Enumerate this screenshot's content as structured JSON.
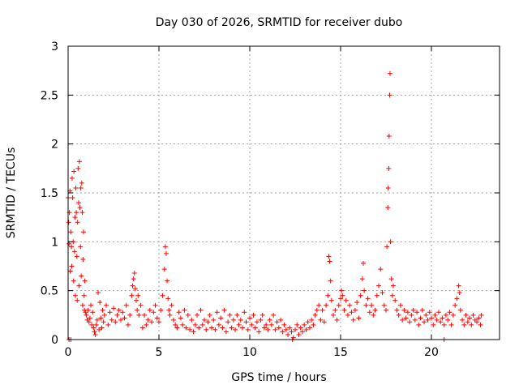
{
  "chart_data": {
    "type": "scatter",
    "title": "Day 030 of 2026, SRMTID for receiver dubo",
    "xlabel": "GPS time / hours",
    "ylabel": "SRMTID / TECUs",
    "xlim": [
      0,
      23.75
    ],
    "ylim": [
      0,
      3
    ],
    "x_ticks": [
      0,
      5,
      10,
      15,
      20
    ],
    "y_ticks": [
      0,
      0.5,
      1,
      1.5,
      2,
      2.5,
      3
    ],
    "x_tick_labels": [
      "0",
      "5",
      "10",
      "15",
      "20"
    ],
    "y_tick_labels": [
      "0",
      "0.5",
      "1",
      "1.5",
      "2",
      "2.5",
      "3"
    ],
    "grid": true,
    "marker": "+",
    "series": [
      {
        "name": "SRMTID",
        "color": "#ff0000",
        "points": [
          [
            0.0,
            1.45
          ],
          [
            0.03,
            1.2
          ],
          [
            0.05,
            0.98
          ],
          [
            0.07,
            1.3
          ],
          [
            0.1,
            1.52
          ],
          [
            0.12,
            0.7
          ],
          [
            0.15,
            1.1
          ],
          [
            0.18,
            0.95
          ],
          [
            0.2,
            0.75
          ],
          [
            0.22,
            1.65
          ],
          [
            0.25,
            1.45
          ],
          [
            0.28,
            1.0
          ],
          [
            0.3,
            0.6
          ],
          [
            0.32,
            1.72
          ],
          [
            0.35,
            0.9
          ],
          [
            0.38,
            1.25
          ],
          [
            0.4,
            0.45
          ],
          [
            0.42,
            1.55
          ],
          [
            0.45,
            1.3
          ],
          [
            0.48,
            0.85
          ],
          [
            0.5,
            0.4
          ],
          [
            0.52,
            1.2
          ],
          [
            0.55,
            1.75
          ],
          [
            0.58,
            1.4
          ],
          [
            0.6,
            0.55
          ],
          [
            0.62,
            1.82
          ],
          [
            0.65,
            1.35
          ],
          [
            0.68,
            0.95
          ],
          [
            0.7,
            1.55
          ],
          [
            0.72,
            0.65
          ],
          [
            0.75,
            1.6
          ],
          [
            0.78,
            1.3
          ],
          [
            0.8,
            0.35
          ],
          [
            0.82,
            0.82
          ],
          [
            0.85,
            1.1
          ],
          [
            0.88,
            0.45
          ],
          [
            0.9,
            0.3
          ],
          [
            0.92,
            0.6
          ],
          [
            0.95,
            0.28
          ],
          [
            0.05,
            0.0
          ],
          [
            0.15,
            0.0
          ],
          [
            1.0,
            0.25
          ],
          [
            1.05,
            0.2
          ],
          [
            1.1,
            0.3
          ],
          [
            1.15,
            0.18
          ],
          [
            1.2,
            0.22
          ],
          [
            1.25,
            0.35
          ],
          [
            1.3,
            0.15
          ],
          [
            1.35,
            0.28
          ],
          [
            1.4,
            0.12
          ],
          [
            1.45,
            0.08
          ],
          [
            1.5,
            0.05
          ],
          [
            1.55,
            0.15
          ],
          [
            1.6,
            0.2
          ],
          [
            1.65,
            0.48
          ],
          [
            1.7,
            0.1
          ],
          [
            1.75,
            0.38
          ],
          [
            1.8,
            0.22
          ],
          [
            1.85,
            0.12
          ],
          [
            1.9,
            0.3
          ],
          [
            1.95,
            0.18
          ],
          [
            2.0,
            0.25
          ],
          [
            2.1,
            0.35
          ],
          [
            2.2,
            0.15
          ],
          [
            2.3,
            0.28
          ],
          [
            2.4,
            0.2
          ],
          [
            2.5,
            0.32
          ],
          [
            2.6,
            0.18
          ],
          [
            2.7,
            0.25
          ],
          [
            2.8,
            0.3
          ],
          [
            2.9,
            0.2
          ],
          [
            3.0,
            0.28
          ],
          [
            3.1,
            0.22
          ],
          [
            3.2,
            0.35
          ],
          [
            3.3,
            0.15
          ],
          [
            3.4,
            0.25
          ],
          [
            3.5,
            0.45
          ],
          [
            3.55,
            0.55
          ],
          [
            3.6,
            0.62
          ],
          [
            3.65,
            0.68
          ],
          [
            3.7,
            0.52
          ],
          [
            3.75,
            0.4
          ],
          [
            3.8,
            0.3
          ],
          [
            3.85,
            0.45
          ],
          [
            3.9,
            0.25
          ],
          [
            4.0,
            0.35
          ],
          [
            4.1,
            0.12
          ],
          [
            4.2,
            0.25
          ],
          [
            4.3,
            0.15
          ],
          [
            4.4,
            0.2
          ],
          [
            4.5,
            0.3
          ],
          [
            4.6,
            0.18
          ],
          [
            4.7,
            0.28
          ],
          [
            4.8,
            0.35
          ],
          [
            4.9,
            0.22
          ],
          [
            5.0,
            0.18
          ],
          [
            5.1,
            0.3
          ],
          [
            5.2,
            0.45
          ],
          [
            5.3,
            0.72
          ],
          [
            5.35,
            0.95
          ],
          [
            5.4,
            0.88
          ],
          [
            5.45,
            0.6
          ],
          [
            5.5,
            0.42
          ],
          [
            5.55,
            0.3
          ],
          [
            5.6,
            0.25
          ],
          [
            5.7,
            0.35
          ],
          [
            5.8,
            0.2
          ],
          [
            5.9,
            0.15
          ],
          [
            6.0,
            0.12
          ],
          [
            6.1,
            0.28
          ],
          [
            6.2,
            0.22
          ],
          [
            6.3,
            0.15
          ],
          [
            6.4,
            0.3
          ],
          [
            6.5,
            0.12
          ],
          [
            6.6,
            0.25
          ],
          [
            6.7,
            0.1
          ],
          [
            6.8,
            0.2
          ],
          [
            6.9,
            0.08
          ],
          [
            7.0,
            0.15
          ],
          [
            7.1,
            0.25
          ],
          [
            7.2,
            0.12
          ],
          [
            7.3,
            0.3
          ],
          [
            7.4,
            0.15
          ],
          [
            7.5,
            0.2
          ],
          [
            7.6,
            0.1
          ],
          [
            7.7,
            0.18
          ],
          [
            7.8,
            0.25
          ],
          [
            7.9,
            0.12
          ],
          [
            8.0,
            0.2
          ],
          [
            8.1,
            0.1
          ],
          [
            8.2,
            0.28
          ],
          [
            8.3,
            0.15
          ],
          [
            8.4,
            0.22
          ],
          [
            8.5,
            0.12
          ],
          [
            8.6,
            0.3
          ],
          [
            8.7,
            0.08
          ],
          [
            8.8,
            0.18
          ],
          [
            8.9,
            0.25
          ],
          [
            9.0,
            0.12
          ],
          [
            9.1,
            0.2
          ],
          [
            9.2,
            0.1
          ],
          [
            9.3,
            0.25
          ],
          [
            9.4,
            0.15
          ],
          [
            9.5,
            0.2
          ],
          [
            9.6,
            0.12
          ],
          [
            9.7,
            0.28
          ],
          [
            9.8,
            0.18
          ],
          [
            9.9,
            0.1
          ],
          [
            10.0,
            0.22
          ],
          [
            10.1,
            0.15
          ],
          [
            10.2,
            0.25
          ],
          [
            10.3,
            0.12
          ],
          [
            10.4,
            0.18
          ],
          [
            10.5,
            0.08
          ],
          [
            10.6,
            0.2
          ],
          [
            10.7,
            0.25
          ],
          [
            10.8,
            0.12
          ],
          [
            10.9,
            0.15
          ],
          [
            11.0,
            0.1
          ],
          [
            11.1,
            0.2
          ],
          [
            11.2,
            0.15
          ],
          [
            11.3,
            0.25
          ],
          [
            11.4,
            0.1
          ],
          [
            11.5,
            0.18
          ],
          [
            11.6,
            0.12
          ],
          [
            11.7,
            0.2
          ],
          [
            11.8,
            0.08
          ],
          [
            11.9,
            0.15
          ],
          [
            12.0,
            0.1
          ],
          [
            12.1,
            0.05
          ],
          [
            12.2,
            0.12
          ],
          [
            12.3,
            0.08
          ],
          [
            12.4,
            0.02
          ],
          [
            12.5,
            0.1
          ],
          [
            12.6,
            0.15
          ],
          [
            12.7,
            0.05
          ],
          [
            12.8,
            0.12
          ],
          [
            12.9,
            0.08
          ],
          [
            13.0,
            0.15
          ],
          [
            13.1,
            0.1
          ],
          [
            13.2,
            0.18
          ],
          [
            13.3,
            0.12
          ],
          [
            13.4,
            0.2
          ],
          [
            13.5,
            0.15
          ],
          [
            13.6,
            0.25
          ],
          [
            13.7,
            0.3
          ],
          [
            13.8,
            0.35
          ],
          [
            13.9,
            0.2
          ],
          [
            14.0,
            0.3
          ],
          [
            14.1,
            0.18
          ],
          [
            14.2,
            0.35
          ],
          [
            14.3,
            0.45
          ],
          [
            14.35,
            0.85
          ],
          [
            14.4,
            0.8
          ],
          [
            14.45,
            0.6
          ],
          [
            14.5,
            0.4
          ],
          [
            14.6,
            0.25
          ],
          [
            14.7,
            0.3
          ],
          [
            14.8,
            0.2
          ],
          [
            14.9,
            0.35
          ],
          [
            15.0,
            0.42
          ],
          [
            15.05,
            0.5
          ],
          [
            15.1,
            0.45
          ],
          [
            15.2,
            0.3
          ],
          [
            15.3,
            0.4
          ],
          [
            15.4,
            0.25
          ],
          [
            15.5,
            0.35
          ],
          [
            15.6,
            0.28
          ],
          [
            15.7,
            0.2
          ],
          [
            15.8,
            0.3
          ],
          [
            15.9,
            0.38
          ],
          [
            16.0,
            0.22
          ],
          [
            16.1,
            0.45
          ],
          [
            16.2,
            0.62
          ],
          [
            16.25,
            0.78
          ],
          [
            16.3,
            0.5
          ],
          [
            16.4,
            0.35
          ],
          [
            16.5,
            0.42
          ],
          [
            16.6,
            0.28
          ],
          [
            16.7,
            0.35
          ],
          [
            16.8,
            0.25
          ],
          [
            16.9,
            0.3
          ],
          [
            17.0,
            0.45
          ],
          [
            17.1,
            0.55
          ],
          [
            17.2,
            0.72
          ],
          [
            17.3,
            0.48
          ],
          [
            17.4,
            0.35
          ],
          [
            17.5,
            0.3
          ],
          [
            17.55,
            0.95
          ],
          [
            17.6,
            1.35
          ],
          [
            17.62,
            1.55
          ],
          [
            17.65,
            1.75
          ],
          [
            17.67,
            2.08
          ],
          [
            17.7,
            2.5
          ],
          [
            17.72,
            2.72
          ],
          [
            17.75,
            1.0
          ],
          [
            17.8,
            0.62
          ],
          [
            17.85,
            0.45
          ],
          [
            17.9,
            0.55
          ],
          [
            18.0,
            0.4
          ],
          [
            18.1,
            0.3
          ],
          [
            18.2,
            0.25
          ],
          [
            18.3,
            0.35
          ],
          [
            18.4,
            0.2
          ],
          [
            18.5,
            0.3
          ],
          [
            18.6,
            0.22
          ],
          [
            18.7,
            0.28
          ],
          [
            18.8,
            0.18
          ],
          [
            18.9,
            0.25
          ],
          [
            19.0,
            0.3
          ],
          [
            19.1,
            0.2
          ],
          [
            19.2,
            0.28
          ],
          [
            19.3,
            0.15
          ],
          [
            19.4,
            0.22
          ],
          [
            19.5,
            0.3
          ],
          [
            19.6,
            0.18
          ],
          [
            19.7,
            0.25
          ],
          [
            19.8,
            0.2
          ],
          [
            19.9,
            0.28
          ],
          [
            20.0,
            0.22
          ],
          [
            20.1,
            0.15
          ],
          [
            20.2,
            0.25
          ],
          [
            20.3,
            0.2
          ],
          [
            20.4,
            0.28
          ],
          [
            20.5,
            0.18
          ],
          [
            20.6,
            0.22
          ],
          [
            20.7,
            0.15
          ],
          [
            20.8,
            0.25
          ],
          [
            20.9,
            0.2
          ],
          [
            21.0,
            0.28
          ],
          [
            21.1,
            0.15
          ],
          [
            21.2,
            0.25
          ],
          [
            21.3,
            0.35
          ],
          [
            21.4,
            0.42
          ],
          [
            21.5,
            0.55
          ],
          [
            21.55,
            0.48
          ],
          [
            21.6,
            0.3
          ],
          [
            21.7,
            0.2
          ],
          [
            21.8,
            0.15
          ],
          [
            21.9,
            0.25
          ],
          [
            22.0,
            0.18
          ],
          [
            22.1,
            0.22
          ],
          [
            22.2,
            0.15
          ],
          [
            22.3,
            0.25
          ],
          [
            22.4,
            0.2
          ],
          [
            22.5,
            0.18
          ],
          [
            22.6,
            0.22
          ],
          [
            22.7,
            0.15
          ],
          [
            22.75,
            0.25
          ],
          [
            20.7,
            0.0
          ],
          [
            12.35,
            0.0
          ]
        ]
      }
    ]
  }
}
